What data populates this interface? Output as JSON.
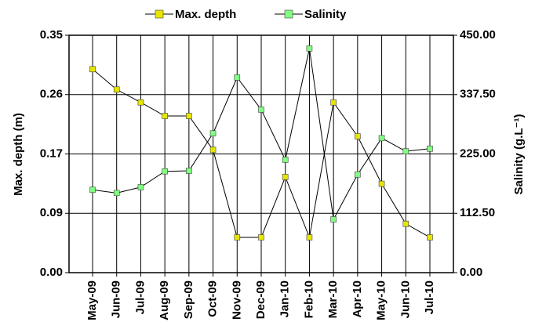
{
  "chart_data": {
    "type": "line",
    "categories": [
      "May-09",
      "Jun-09",
      "Jul-09",
      "Aug-09",
      "Sep-09",
      "Oct-09",
      "Nov-09",
      "Dec-09",
      "Jan-10",
      "Feb-10",
      "Mar-10",
      "Apr-10",
      "May-10",
      "Jun-10",
      "Jul-10"
    ],
    "series": [
      {
        "name": "Max. depth",
        "color": "#e6e600",
        "values": [
          0.3,
          0.27,
          0.251,
          0.231,
          0.231,
          0.181,
          0.052,
          0.052,
          0.141,
          0.052,
          0.251,
          0.201,
          0.131,
          0.072,
          0.052
        ]
      },
      {
        "name": "Salinity",
        "color": "#80ff80",
        "axis": "y2",
        "values": [
          157,
          151,
          162,
          192,
          193,
          264,
          370,
          309,
          214,
          425,
          101,
          186,
          255,
          230,
          235
        ]
      }
    ],
    "ylabel": "Max. depth (m)",
    "y2label": "Salinity (g.L⁻¹)",
    "ylim": [
      0,
      0.35
    ],
    "yticks": [
      {
        "value": 0,
        "label": "0.00"
      },
      {
        "value": 0.0875,
        "label": "0.09"
      },
      {
        "value": 0.175,
        "label": "0.17"
      },
      {
        "value": 0.2625,
        "label": "0.26"
      },
      0.35
    ],
    "y2lim": [
      0,
      450
    ],
    "y2ticks": [
      {
        "value": 0,
        "label": "0.00"
      },
      {
        "value": 112.5,
        "label": "112.50"
      },
      {
        "value": 225,
        "label": "225.00"
      },
      {
        "value": 337.5,
        "label": "337.50"
      },
      {
        "value": 450,
        "label": "450.00"
      }
    ],
    "grid": true,
    "legend": "top"
  }
}
